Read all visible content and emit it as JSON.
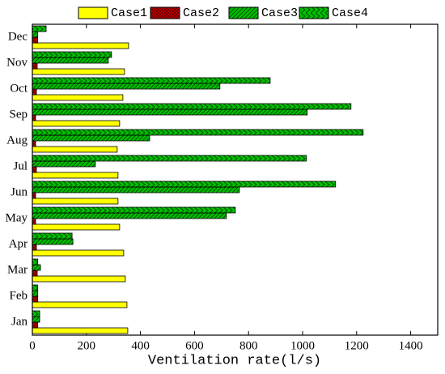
{
  "chart_data": {
    "type": "hbar",
    "xlabel": "Ventilation rate(l/s)",
    "categories": [
      "Jan",
      "Feb",
      "Mar",
      "Apr",
      "May",
      "Jun",
      "Jul",
      "Aug",
      "Sep",
      "Oct",
      "Nov",
      "Dec"
    ],
    "series": [
      {
        "name": "Case1",
        "color": "#ffff00",
        "values": [
          353,
          350,
          344,
          338,
          323,
          317,
          317,
          314,
          323,
          335,
          341,
          356
        ]
      },
      {
        "name": "Case2",
        "color": "#d40000",
        "values": [
          20,
          20,
          18,
          15,
          12,
          12,
          15,
          12,
          12,
          15,
          18,
          20
        ]
      },
      {
        "name": "Case3",
        "color": "#00c000",
        "values": [
          27,
          20,
          30,
          150,
          718,
          766,
          233,
          434,
          1017,
          694,
          281,
          20
        ]
      },
      {
        "name": "Case4",
        "color": "#00c000",
        "values": [
          27,
          20,
          20,
          147,
          751,
          1122,
          1014,
          1224,
          1179,
          880,
          293,
          51
        ]
      }
    ],
    "xlim": [
      0,
      1500
    ],
    "xticks": [
      0,
      200,
      400,
      600,
      800,
      1000,
      1200,
      1400
    ]
  }
}
